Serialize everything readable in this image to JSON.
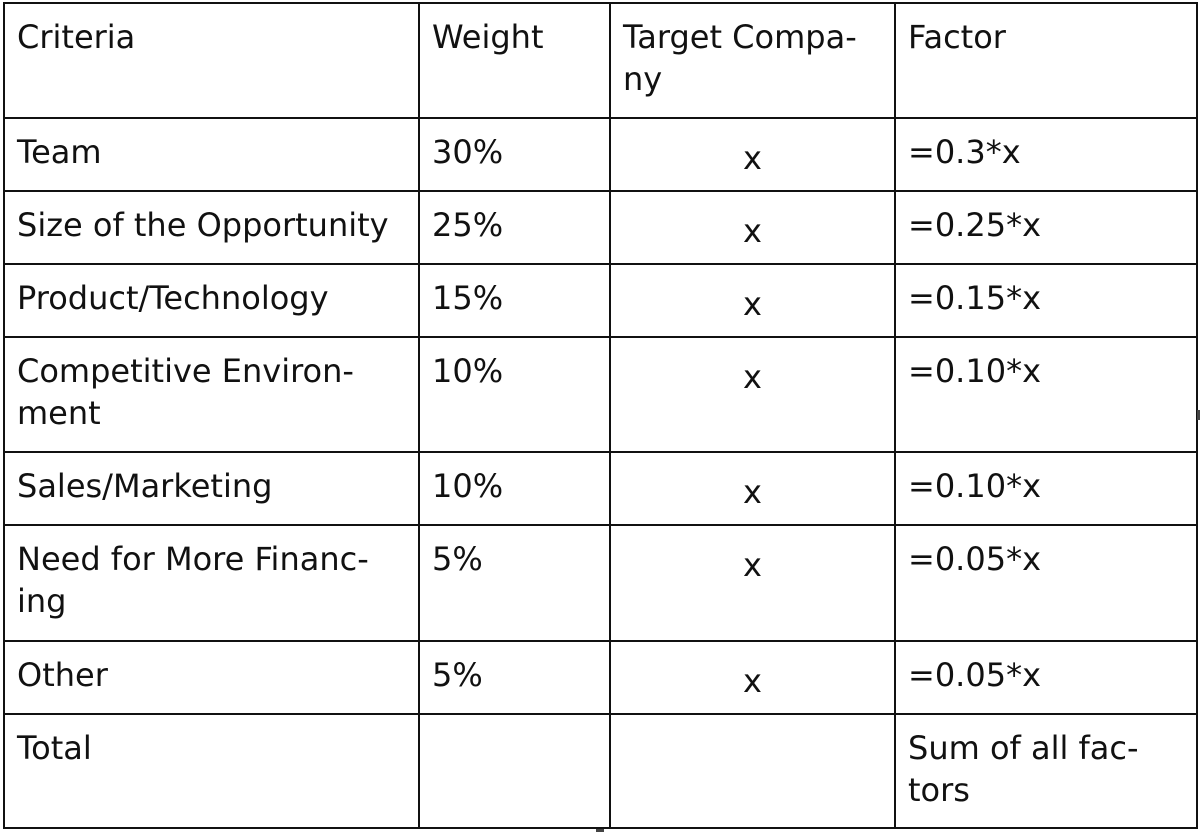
{
  "table": {
    "headers": [
      "Criteria",
      "Weight",
      "Target Compa-\nny",
      "Factor"
    ],
    "rows": [
      {
        "criteria": "Team",
        "weight": "30%",
        "target": "x",
        "factor": "=0.3*x"
      },
      {
        "criteria": "Size of the Opportunity",
        "weight": "25%",
        "target": "x",
        "factor": "=0.25*x"
      },
      {
        "criteria": "Product/Technology",
        "weight": "15%",
        "target": "x",
        "factor": "=0.15*x"
      },
      {
        "criteria": "Competitive Environ-\nment",
        "weight": "10%",
        "target": "x",
        "factor": "=0.10*x"
      },
      {
        "criteria": "Sales/Marketing",
        "weight": "10%",
        "target": "x",
        "factor": "=0.10*x"
      },
      {
        "criteria": "Need for More Financ-\ning",
        "weight": "5%",
        "target": "x",
        "factor": "=0.05*x"
      },
      {
        "criteria": "Other",
        "weight": "5%",
        "target": "x",
        "factor": "=0.05*x"
      },
      {
        "criteria": "Total",
        "weight": "",
        "target": "",
        "factor": "Sum of all fac-\ntors"
      }
    ]
  }
}
